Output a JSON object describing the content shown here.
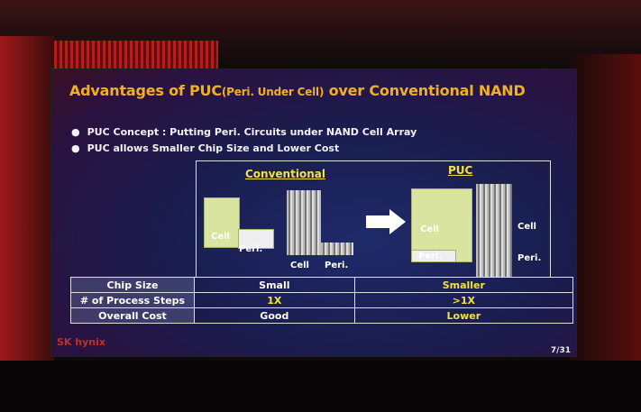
{
  "slide": {
    "title": "Advantages of PUC",
    "title_paren": "(Peri. Under Cell)",
    "title_rest": " over Conventional NAND",
    "bullets": [
      "PUC Concept : Putting Peri. Circuits under NAND Cell Array",
      "PUC allows Smaller Chip Size and Lower Cost"
    ],
    "diagram": {
      "conventional_label": "Conventional",
      "puc_label": "PUC",
      "cell": "Cell",
      "peri": "Peri."
    },
    "table": {
      "rows": [
        {
          "label": "Chip Size",
          "conventional": "Small",
          "puc": "Smaller"
        },
        {
          "label": "# of Process Steps",
          "conventional": "1X",
          "puc": ">1X"
        },
        {
          "label": "Overall Cost",
          "conventional": "Good",
          "puc": "Lower"
        }
      ]
    },
    "logo": "SK hynix",
    "page": "7/31"
  },
  "colors": {
    "title": "#f0b020",
    "highlight": "#f3e23a"
  }
}
